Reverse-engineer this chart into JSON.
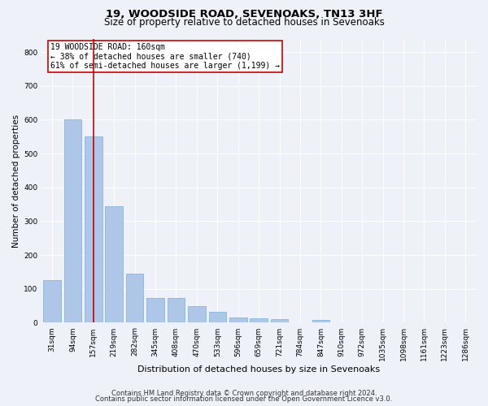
{
  "title1": "19, WOODSIDE ROAD, SEVENOAKS, TN13 3HF",
  "title2": "Size of property relative to detached houses in Sevenoaks",
  "xlabel": "Distribution of detached houses by size in Sevenoaks",
  "ylabel": "Number of detached properties",
  "categories": [
    "31sqm",
    "94sqm",
    "157sqm",
    "219sqm",
    "282sqm",
    "345sqm",
    "408sqm",
    "470sqm",
    "533sqm",
    "596sqm",
    "659sqm",
    "721sqm",
    "784sqm",
    "847sqm",
    "910sqm",
    "972sqm",
    "1035sqm",
    "1098sqm",
    "1161sqm",
    "1223sqm",
    "1286sqm"
  ],
  "values": [
    125,
    600,
    550,
    345,
    145,
    72,
    72,
    50,
    32,
    15,
    13,
    10,
    0,
    8,
    0,
    0,
    0,
    0,
    0,
    0,
    0
  ],
  "bar_color": "#aec6e8",
  "bar_edge_color": "#7bafd4",
  "vline_x": 2,
  "vline_color": "#cc0000",
  "annotation_text": "19 WOODSIDE ROAD: 160sqm\n← 38% of detached houses are smaller (740)\n61% of semi-detached houses are larger (1,199) →",
  "annotation_box_color": "#ffffff",
  "annotation_box_edge": "#cc0000",
  "ylim": [
    0,
    840
  ],
  "yticks": [
    0,
    100,
    200,
    300,
    400,
    500,
    600,
    700,
    800
  ],
  "footer1": "Contains HM Land Registry data © Crown copyright and database right 2024.",
  "footer2": "Contains public sector information licensed under the Open Government Licence v3.0.",
  "background_color": "#eef2f8",
  "plot_bg_color": "#eef2f8",
  "grid_color": "#ffffff",
  "title1_fontsize": 9.5,
  "title2_fontsize": 8.5,
  "xlabel_fontsize": 8,
  "ylabel_fontsize": 7.5,
  "tick_fontsize": 6.5,
  "footer_fontsize": 6,
  "annotation_fontsize": 7
}
